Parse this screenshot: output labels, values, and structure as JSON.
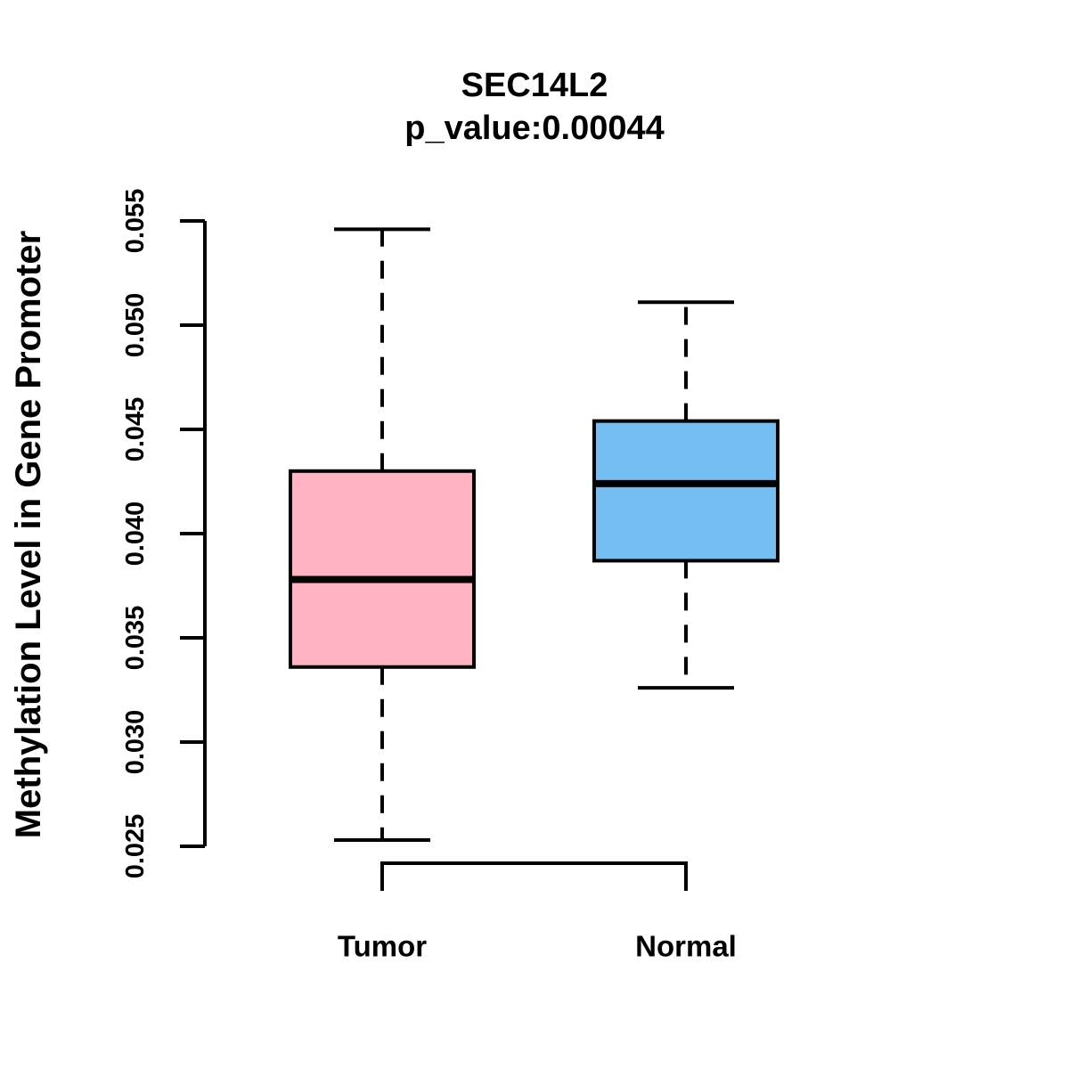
{
  "chart_data": {
    "type": "boxplot",
    "title": "SEC14L2",
    "subtitle": "p_value:0.00044",
    "p_value": "0.00044",
    "gene": "SEC14L2",
    "ylabel": "Methylation Level in Gene Promoter",
    "xlabel": "",
    "categories": [
      "Tumor",
      "Normal"
    ],
    "yticks": [
      0.025,
      0.03,
      0.035,
      0.04,
      0.045,
      0.05,
      0.055
    ],
    "ytick_labels": [
      "0.025",
      "0.030",
      "0.035",
      "0.040",
      "0.045",
      "0.050",
      "0.055"
    ],
    "ylim": [
      0.025,
      0.055
    ],
    "grid": false,
    "legend": "none",
    "series": [
      {
        "name": "Tumor",
        "box_fill_color": "#FFB3C3",
        "border_color": "#000000",
        "lower_whisker": 0.0253,
        "q1": 0.0336,
        "median": 0.0378,
        "q3": 0.043,
        "upper_whisker": 0.0546
      },
      {
        "name": "Normal",
        "box_fill_color": "#74BEF4",
        "border_color": "#000000",
        "lower_whisker": 0.0326,
        "q1": 0.0387,
        "median": 0.0424,
        "q3": 0.0454,
        "upper_whisker": 0.0511
      }
    ]
  }
}
